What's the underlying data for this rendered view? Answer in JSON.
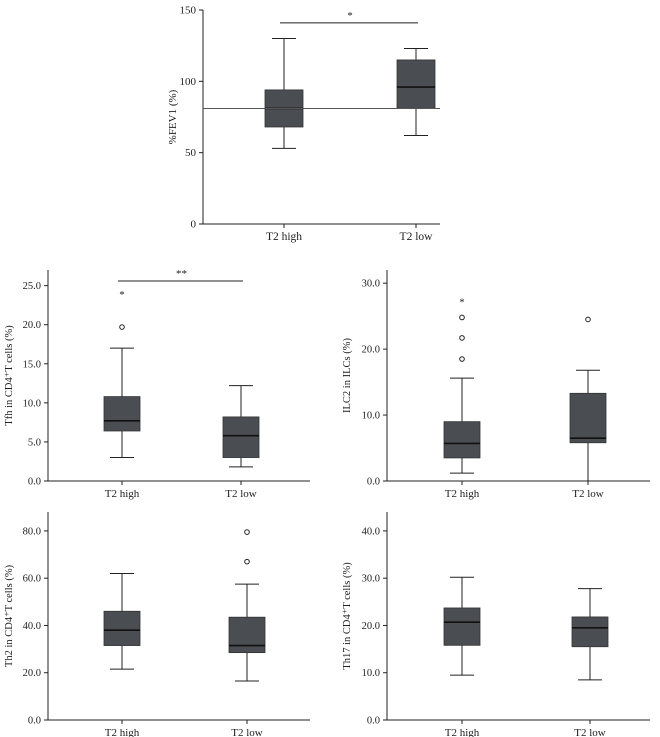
{
  "colors": {
    "box": "#4a4d52",
    "line": "#222222",
    "median": "#111111",
    "ref": "#555555"
  },
  "chart_data": [
    {
      "id": "fev1",
      "type": "boxplot",
      "ylabel": "%FEV1 (%)",
      "ylim": [
        0,
        150
      ],
      "yticks": [
        0,
        50,
        100,
        150
      ],
      "ytick_labels": [
        "0",
        "50",
        "100",
        "150"
      ],
      "categories": [
        "T2 high",
        "T2 low"
      ],
      "boxes": [
        {
          "min": 53,
          "q1": 68,
          "median": 81,
          "q3": 94,
          "max": 130,
          "outliers": []
        },
        {
          "min": 62,
          "q1": 81,
          "median": 96,
          "q3": 115,
          "max": 123,
          "outliers": []
        }
      ],
      "reference_line": 81,
      "significance": {
        "from": 0,
        "to": 1,
        "y": 141,
        "label": "*"
      },
      "extreme_marks": []
    },
    {
      "id": "tfh",
      "type": "boxplot",
      "ylabel": "Tfh in CD4⁺T cells (%)",
      "ylim": [
        0,
        27
      ],
      "yticks": [
        0,
        5,
        10,
        15,
        20,
        25
      ],
      "ytick_labels": [
        "0.0",
        "5.0",
        "10.0",
        "15.0",
        "20.0",
        "25.0"
      ],
      "categories": [
        "T2 high",
        "T2 low"
      ],
      "boxes": [
        {
          "min": 3.0,
          "q1": 6.4,
          "median": 7.7,
          "q3": 10.8,
          "max": 17.0,
          "outliers": [
            19.7
          ]
        },
        {
          "min": 1.8,
          "q1": 3.0,
          "median": 5.8,
          "q3": 8.2,
          "max": 12.2,
          "outliers": []
        }
      ],
      "reference_line": null,
      "significance": {
        "from": 0,
        "to": 1,
        "y": 25.6,
        "label": "**"
      },
      "extreme_marks": [
        {
          "cat": 0,
          "value": 23.9,
          "label": "*"
        }
      ]
    },
    {
      "id": "ilc2",
      "type": "boxplot",
      "ylabel": "ILC2 in ILCs (%)",
      "ylim": [
        0,
        32
      ],
      "yticks": [
        0,
        10,
        20,
        30
      ],
      "ytick_labels": [
        "0.0",
        "10.0",
        "20.0",
        "30.0"
      ],
      "categories": [
        "T2 high",
        "T2 low"
      ],
      "boxes": [
        {
          "min": 1.2,
          "q1": 3.5,
          "median": 5.7,
          "q3": 9.0,
          "max": 15.6,
          "outliers": [
            18.5,
            21.7,
            24.8
          ]
        },
        {
          "min": 0,
          "q1": 5.8,
          "median": 6.5,
          "q3": 13.3,
          "max": 16.8,
          "outliers": [
            24.5
          ]
        }
      ],
      "reference_line": null,
      "significance": null,
      "extreme_marks": [
        {
          "cat": 0,
          "value": 27.2,
          "label": "*"
        }
      ]
    },
    {
      "id": "th2",
      "type": "boxplot",
      "ylabel": "Th2 in CD4⁺T cells (%)",
      "ylim": [
        0,
        88
      ],
      "yticks": [
        0,
        20,
        40,
        60,
        80
      ],
      "ytick_labels": [
        "0.0",
        "20.0",
        "40.0",
        "60.0",
        "80.0"
      ],
      "categories": [
        "T2 high",
        "T2 low"
      ],
      "boxes": [
        {
          "min": 21.5,
          "q1": 31.5,
          "median": 38.0,
          "q3": 46.0,
          "max": 62.0,
          "outliers": []
        },
        {
          "min": 16.5,
          "q1": 28.5,
          "median": 31.5,
          "q3": 43.5,
          "max": 57.5,
          "outliers": [
            67.0,
            79.5
          ]
        }
      ],
      "reference_line": null,
      "significance": null,
      "extreme_marks": []
    },
    {
      "id": "th17",
      "type": "boxplot",
      "ylabel": "Th17 in CD4⁺T cells (%)",
      "ylim": [
        0,
        44
      ],
      "yticks": [
        0,
        10,
        20,
        30,
        40
      ],
      "ytick_labels": [
        "0.0",
        "10.0",
        "20.0",
        "30.0",
        "40.0"
      ],
      "categories": [
        "T2 high",
        "T2 low"
      ],
      "boxes": [
        {
          "min": 9.5,
          "q1": 15.8,
          "median": 20.7,
          "q3": 23.7,
          "max": 30.2,
          "outliers": []
        },
        {
          "min": 8.5,
          "q1": 15.5,
          "median": 19.5,
          "q3": 21.8,
          "max": 27.8,
          "outliers": []
        }
      ],
      "reference_line": null,
      "significance": null,
      "extreme_marks": []
    }
  ]
}
